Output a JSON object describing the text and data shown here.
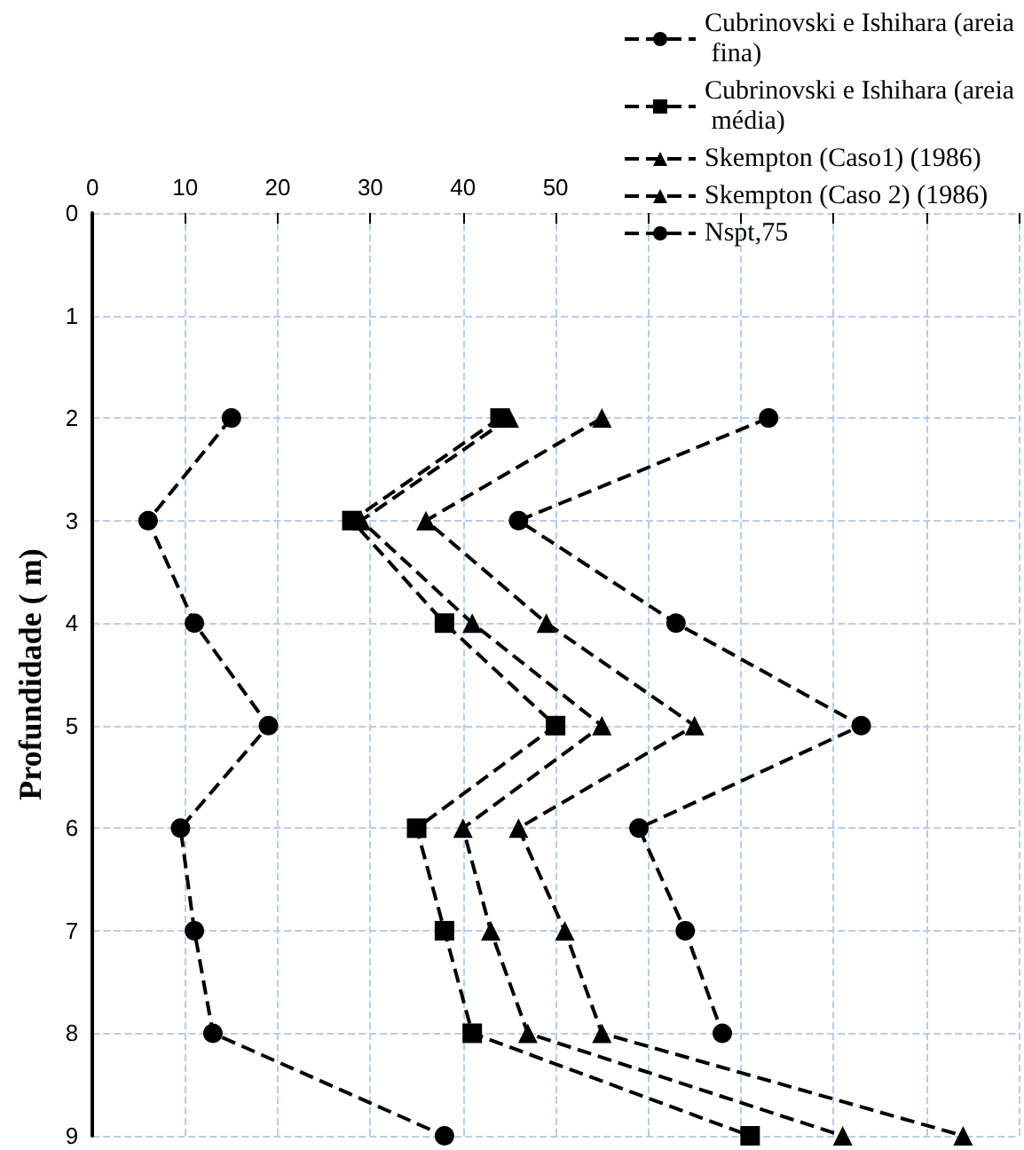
{
  "chart_data": {
    "type": "line",
    "orientation": "horizontal",
    "ylabel": "Profundidade ( m)",
    "categories": [
      "0",
      "1",
      "2",
      "3",
      "4",
      "5",
      "6",
      "7",
      "8",
      "9"
    ],
    "xlim": [
      0,
      100
    ],
    "xticks": [
      0,
      10,
      20,
      30,
      40,
      50,
      {
        "value": 60,
        "label": null
      },
      {
        "value": 70,
        "label": null
      },
      {
        "value": 80,
        "label": null
      },
      {
        "value": 90,
        "label": null
      },
      {
        "value": 100,
        "label": null
      }
    ],
    "series": [
      {
        "name": "Cubrinovski e Ishihara (areia fina)",
        "color": "#000000",
        "marker": "circle",
        "values": [
          null,
          null,
          73,
          46,
          63,
          83,
          59,
          64,
          68,
          null
        ]
      },
      {
        "name": "Cubrinovski e Ishihara (areia média)",
        "color": "#000000",
        "marker": "square",
        "values": [
          null,
          null,
          44,
          28,
          38,
          50,
          35,
          38,
          41,
          71
        ]
      },
      {
        "name": "Skempton (Caso1) (1986)",
        "color": "#000000",
        "marker": "triangle",
        "values": [
          null,
          null,
          55,
          36,
          49,
          65,
          46,
          51,
          55,
          94
        ]
      },
      {
        "name": "Skempton (Caso 2) (1986)",
        "color": "#000000",
        "marker": "triangle",
        "values": [
          null,
          null,
          45,
          29,
          41,
          55,
          40,
          43,
          47,
          81
        ]
      },
      {
        "name": "Nspt,75",
        "color": "#000000",
        "marker": "circle",
        "values": [
          null,
          null,
          15,
          6,
          11,
          19,
          9.5,
          11,
          13,
          38
        ]
      }
    ],
    "grid": true,
    "legend": "top right",
    "line_style": "dashed"
  }
}
